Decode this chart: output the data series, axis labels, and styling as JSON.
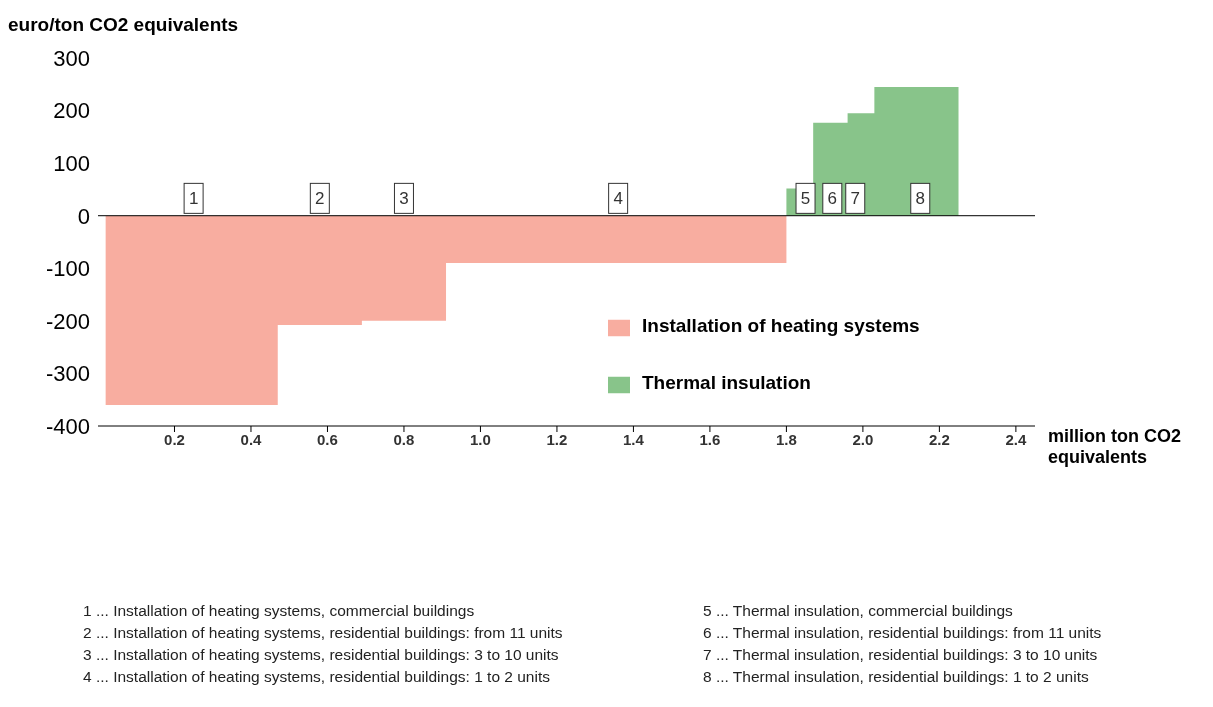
{
  "chart_data": {
    "type": "area",
    "ylabel": "euro/ton CO2 equivalents",
    "xlabel": "million ton CO2 equivalents",
    "xlim": [
      0,
      2.45
    ],
    "xticks": [
      0.2,
      0.4,
      0.6,
      0.8,
      {
        "value": 1,
        "label": "1.0"
      },
      1.2,
      1.4,
      1.6,
      1.8,
      {
        "value": 2,
        "label": "2.0"
      },
      2.2,
      2.4
    ],
    "ref_lines": [
      {
        "axis": "y",
        "value": 0,
        "color": "#000000"
      }
    ],
    "ylim": [
      -400,
      300
    ],
    "yticks": [
      -400,
      -300,
      -200,
      -100,
      0,
      100,
      200,
      300
    ],
    "series": [
      {
        "name": "Installation of heating systems",
        "color": "#f8ada0",
        "x": [
          0.02,
          0.47,
          0.69,
          0.91,
          1.8
        ],
        "values": [
          -360,
          -208,
          -200,
          -90,
          -90
        ]
      },
      {
        "name": "Thermal insulation",
        "color": "#88c48a",
        "x": [
          1.8,
          1.87,
          1.96,
          2.03,
          2.25
        ],
        "values": [
          52,
          177,
          195,
          245,
          245
        ]
      }
    ],
    "legend": "right",
    "grid": false,
    "annotations": [
      {
        "text": "1",
        "x": 0.25,
        "y": 33
      },
      {
        "text": "2",
        "x": 0.58,
        "y": 33
      },
      {
        "text": "3",
        "x": 0.8,
        "y": 33
      },
      {
        "text": "4",
        "x": 1.36,
        "y": 33
      },
      {
        "text": "5",
        "x": 1.85,
        "y": 33
      },
      {
        "text": "6",
        "x": 1.92,
        "y": 33
      },
      {
        "text": "7",
        "x": 1.98,
        "y": 33
      },
      {
        "text": "8",
        "x": 2.15,
        "y": 33
      },
      "1 ... Installation of heating systems, commercial buildings",
      "2 ... Installation of heating systems, residential buildings: from 11 units",
      "3 ... Installation of heating systems, residential buildings: 3 to 10 units",
      "4 ... Installation of heating systems, residential buildings: 1 to 2 units",
      "5 ... Thermal insulation, commercial buildings",
      "6 ... Thermal insulation, residential buildings: from 11 units",
      "7 ... Thermal insulation, residential  buildings: 3 to 10 units",
      "8 ... Thermal insulation, residential buildings: 1 to 2 units"
    ]
  }
}
